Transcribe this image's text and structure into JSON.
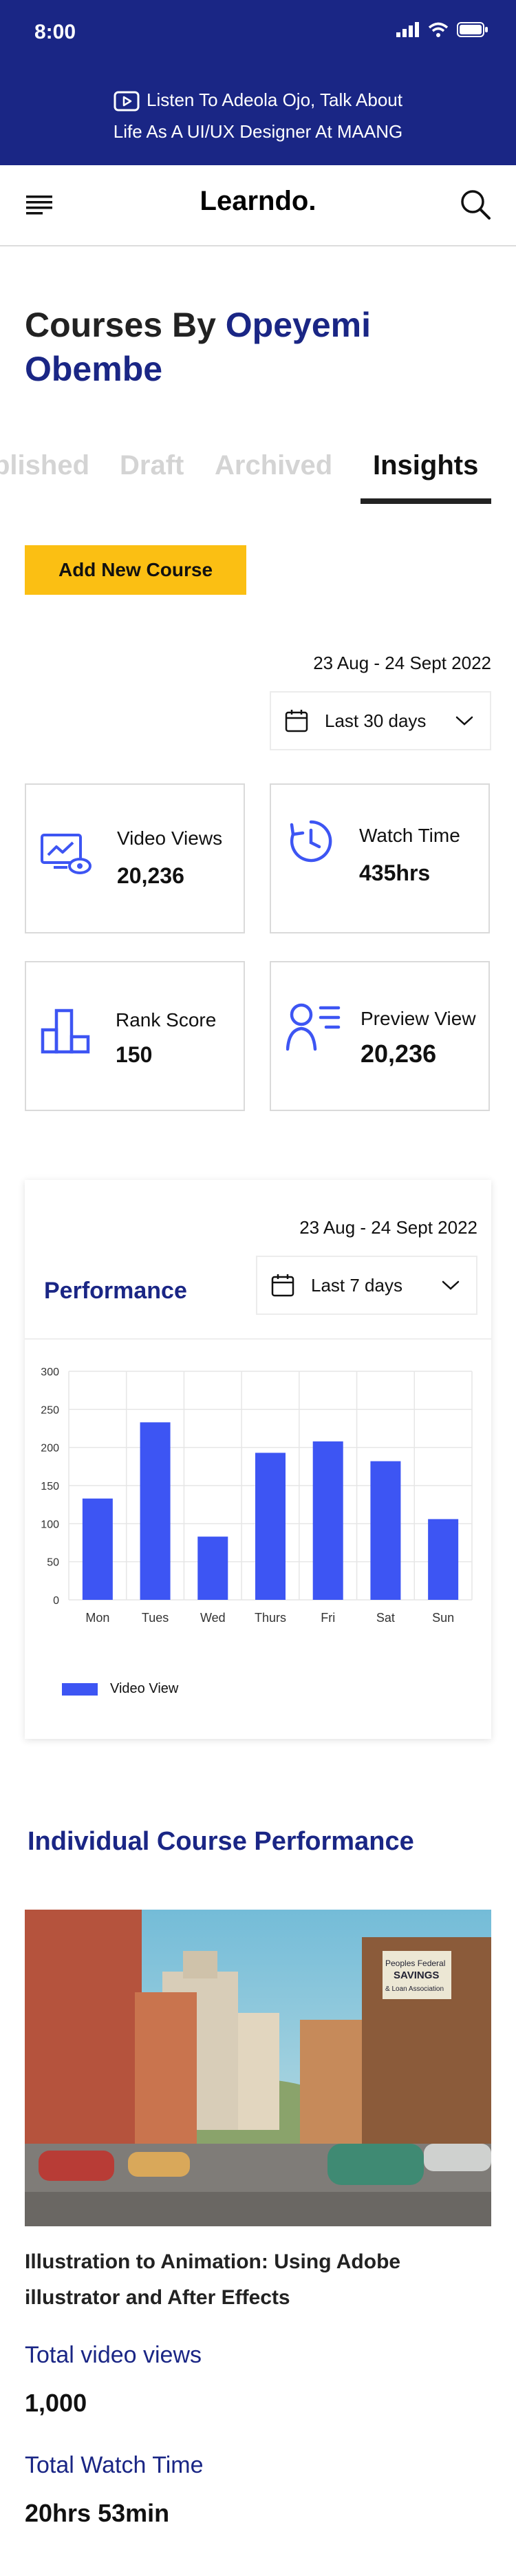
{
  "status_bar": {
    "time": "8:00"
  },
  "promo": {
    "line1": "Listen To Adeola Ojo, Talk About",
    "line2": "Life As A UI/UX Designer At MAANG"
  },
  "header": {
    "brand": "Learndo."
  },
  "page": {
    "title_prefix": "Courses By ",
    "title_name_1": "Opeyemi",
    "title_name_2": "Obembe"
  },
  "tabs": [
    {
      "label": "blished",
      "active": false
    },
    {
      "label": "Draft",
      "active": false
    },
    {
      "label": "Archived",
      "active": false
    },
    {
      "label": "Insights",
      "active": true
    }
  ],
  "add_button": {
    "label": "Add New Course"
  },
  "overview": {
    "date_range": "23 Aug - 24 Sept 2022",
    "period": "Last 30 days"
  },
  "stats": [
    {
      "label": "Video Views",
      "value": "20,236",
      "icon": "video-analytics-icon"
    },
    {
      "label": "Watch Time",
      "value": "435hrs",
      "icon": "clock-history-icon"
    },
    {
      "label": "Rank Score",
      "value": "150",
      "icon": "bar-rank-icon"
    },
    {
      "label": "Preview View",
      "value": "20,236",
      "icon": "user-list-icon"
    }
  ],
  "performance": {
    "date_range": "23 Aug - 24 Sept 2022",
    "title": "Performance",
    "period": "Last 7 days",
    "legend": "Video View"
  },
  "chart_data": {
    "type": "bar",
    "title": "Performance",
    "categories": [
      "Mon",
      "Tues",
      "Wed",
      "Thurs",
      "Fri",
      "Sat",
      "Sun"
    ],
    "series": [
      {
        "name": "Video View",
        "values": [
          133,
          233,
          83,
          193,
          208,
          182,
          106
        ]
      }
    ],
    "yticks": [
      0,
      50,
      100,
      150,
      200,
      250,
      300
    ],
    "ylim": [
      0,
      300
    ],
    "grid": true,
    "legend_position": "bottom-left",
    "color": "#3d55f3"
  },
  "individual": {
    "title": "Individual Course Performance",
    "course_name_line1": "Illustration to Animation: Using Adobe",
    "course_name_line2": "illustrator and After Effects",
    "views_label": "Total video views",
    "views_value": "1,000",
    "watch_label": "Total Watch Time",
    "watch_value": "20hrs 53min",
    "hero_signs": [
      "Peoples Federal",
      "SAVINGS",
      "& Loan Association"
    ]
  },
  "colors": {
    "navy": "#1a2685",
    "accent": "#fbbf13",
    "bar": "#3d55f3",
    "icon": "#3d55f3"
  }
}
